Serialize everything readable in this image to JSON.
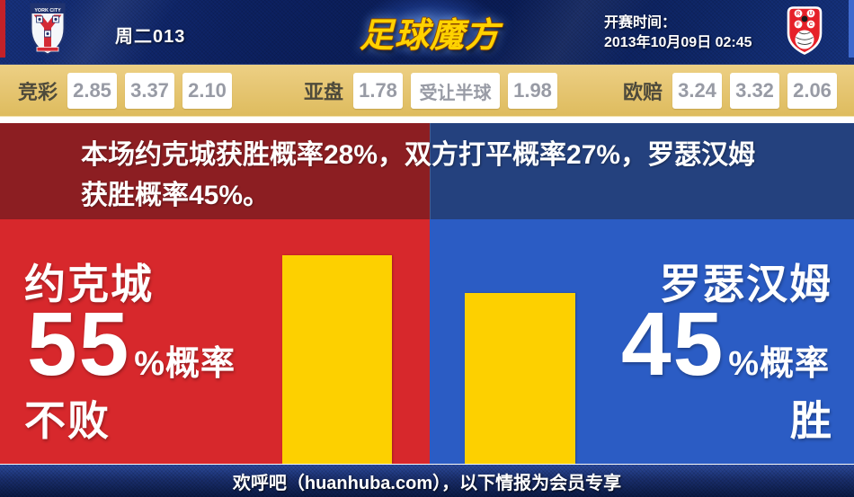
{
  "header": {
    "match_code": "周二013",
    "site_logo": "足球魔方",
    "kickoff_label": "开赛时间：",
    "kickoff_time": "2013年10月09日 02:45",
    "home_crest_name": "york-city-crest",
    "home_crest_text": "YORK CITY",
    "away_crest_name": "rotherham-united-crest",
    "away_crest_letters": [
      "R",
      "U",
      "F",
      "C"
    ]
  },
  "odds_bar": {
    "groups": [
      {
        "label": "竞彩",
        "values": [
          "2.85",
          "3.37",
          "2.10"
        ]
      },
      {
        "label": "亚盘",
        "values": [
          "1.78",
          "受让半球",
          "1.98"
        ]
      },
      {
        "label": "欧赔",
        "values": [
          "3.24",
          "3.32",
          "2.06"
        ]
      }
    ]
  },
  "summary": {
    "full_text": "本场约克城获胜概率28%，双方打平概率27%，罗瑟汉姆获胜概率45%。",
    "lines": [
      "本场约克城获胜概率28%，双方打平概率27%，罗瑟汉姆",
      "获胜概率45%。"
    ]
  },
  "panels": {
    "left": {
      "team": "约克城",
      "probability": "55",
      "suffix": "%概率",
      "outcome": "不败"
    },
    "right": {
      "team": "罗瑟汉姆",
      "probability": "45",
      "suffix": "%概率",
      "outcome": "胜"
    }
  },
  "chart_data": {
    "type": "bar",
    "categories": [
      "约克城 不败",
      "罗瑟汉姆 胜"
    ],
    "values": [
      55,
      45
    ],
    "unit": "%",
    "bar_color": "#fdd000",
    "title": "胜负概率对比"
  },
  "footer": {
    "text": "欢呼吧（huanhuba.com），以下情报为会员专享"
  },
  "colors": {
    "home_panel": "#d7282c",
    "home_strip": "#8c1e22",
    "away_panel": "#2b5cc4",
    "away_strip": "#24417e",
    "bar": "#fdd000",
    "odds_bg": "#e6c673",
    "logo_gold": "#ffd200",
    "header_navy": "#0d2263",
    "footer_navy": "#1a2f6e"
  }
}
